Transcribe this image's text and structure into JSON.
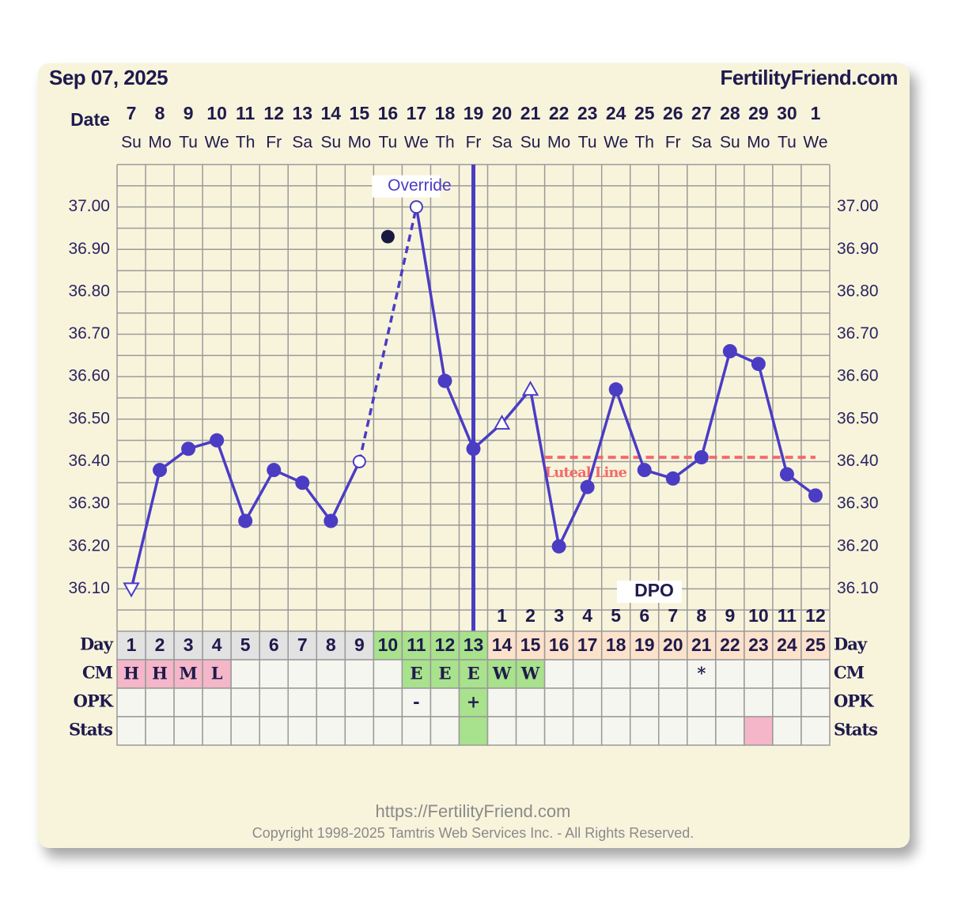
{
  "header": {
    "date": "Sep 07, 2025",
    "site": "FertilityFriend.com"
  },
  "chart_data": {
    "type": "line",
    "date_label": "Date",
    "dates": [
      7,
      8,
      9,
      10,
      11,
      12,
      13,
      14,
      15,
      16,
      17,
      18,
      19,
      20,
      21,
      22,
      23,
      24,
      25,
      26,
      27,
      28,
      29,
      30,
      1
    ],
    "weekdays": [
      "Su",
      "Mo",
      "Tu",
      "We",
      "Th",
      "Fr",
      "Sa",
      "Su",
      "Mo",
      "Tu",
      "We",
      "Th",
      "Fr",
      "Sa",
      "Su",
      "Mo",
      "Tu",
      "We",
      "Th",
      "Fr",
      "Sa",
      "Su",
      "Mo",
      "Tu",
      "We"
    ],
    "ylim": [
      36.0,
      37.1
    ],
    "yticks": [
      {
        "value": 36.1,
        "label": "36.10"
      },
      {
        "value": 36.2,
        "label": "36.20"
      },
      {
        "value": 36.3,
        "label": "36.30"
      },
      {
        "value": 36.4,
        "label": "36.40"
      },
      {
        "value": 36.5,
        "label": "36.50"
      },
      {
        "value": 36.6,
        "label": "36.60"
      },
      {
        "value": 36.7,
        "label": "36.70"
      },
      {
        "value": 36.8,
        "label": "36.80"
      },
      {
        "value": 36.9,
        "label": "36.90"
      },
      {
        "value": 37.0,
        "label": "37.00"
      }
    ],
    "grid": true,
    "color": "#4b3cc4",
    "temperatures": [
      36.1,
      36.38,
      36.43,
      36.45,
      36.26,
      36.38,
      36.35,
      36.26,
      36.4,
      36.93,
      37.0,
      36.59,
      36.43,
      36.49,
      36.57,
      36.2,
      36.34,
      36.57,
      36.38,
      36.36,
      36.41,
      36.66,
      36.63,
      36.37,
      36.32
    ],
    "markers": [
      "triangle-down",
      "filled",
      "filled",
      "filled",
      "filled",
      "filled",
      "filled",
      "filled",
      "open",
      "discarded",
      "override",
      "filled",
      "filled",
      "triangle-up",
      "triangle-up",
      "filled",
      "filled",
      "filled",
      "filled",
      "filled",
      "filled",
      "filled",
      "filled",
      "filled",
      "filled"
    ],
    "override_label": "Override",
    "ovulation_day": 13,
    "coverline": {
      "label": "Luteal Line",
      "value": 36.41,
      "start_day": 16,
      "color": "#f26b6b"
    },
    "dpo_label": "DPO",
    "dpo": [
      null,
      null,
      null,
      null,
      null,
      null,
      null,
      null,
      null,
      null,
      null,
      null,
      null,
      1,
      2,
      3,
      4,
      5,
      6,
      7,
      8,
      9,
      10,
      11,
      12
    ],
    "rows": [
      {
        "label": "Day",
        "cells": [
          1,
          2,
          3,
          4,
          5,
          6,
          7,
          8,
          9,
          10,
          11,
          12,
          13,
          14,
          15,
          16,
          17,
          18,
          19,
          20,
          21,
          22,
          23,
          24,
          25
        ],
        "fills": [
          "#e2e2e2",
          "#e2e2e2",
          "#e2e2e2",
          "#e2e2e2",
          "#e2e2e2",
          "#e2e2e2",
          "#e2e2e2",
          "#e2e2e2",
          "#e2e2e2",
          "#a8e28c",
          "#a8e28c",
          "#a8e28c",
          "#a8e28c",
          "#fde2cb",
          "#fde2cb",
          "#fde2cb",
          "#fde2cb",
          "#fde2cb",
          "#fde2cb",
          "#fde2cb",
          "#fde2cb",
          "#fde2cb",
          "#fde2cb",
          "#fde2cb",
          "#fde2cb"
        ]
      },
      {
        "label": "CM",
        "cells": [
          "H",
          "H",
          "M",
          "L",
          null,
          null,
          null,
          null,
          null,
          null,
          "E",
          "E",
          "E",
          "W",
          "W",
          null,
          null,
          null,
          null,
          null,
          "*",
          null,
          null,
          null,
          null
        ],
        "fills": [
          "#f4b6c8",
          "#f4b6c8",
          "#f4b6c8",
          "#f4b6c8",
          null,
          null,
          null,
          null,
          null,
          null,
          "#a8e28c",
          "#a8e28c",
          "#a8e28c",
          "#a8e28c",
          "#a8e28c",
          null,
          null,
          null,
          null,
          null,
          null,
          null,
          null,
          null,
          null
        ]
      },
      {
        "label": "OPK",
        "cells": [
          null,
          null,
          null,
          null,
          null,
          null,
          null,
          null,
          null,
          null,
          "-",
          null,
          "+",
          null,
          null,
          null,
          null,
          null,
          null,
          null,
          null,
          null,
          null,
          null,
          null
        ],
        "fills": [
          null,
          null,
          null,
          null,
          null,
          null,
          null,
          null,
          null,
          null,
          null,
          null,
          "#a8e28c",
          null,
          null,
          null,
          null,
          null,
          null,
          null,
          null,
          null,
          null,
          null,
          null
        ]
      },
      {
        "label": "Stats",
        "cells": [
          null,
          null,
          null,
          null,
          null,
          null,
          null,
          null,
          null,
          null,
          null,
          null,
          null,
          null,
          null,
          null,
          null,
          null,
          null,
          null,
          null,
          null,
          null,
          null,
          null
        ],
        "fills": [
          null,
          null,
          null,
          null,
          null,
          null,
          null,
          null,
          null,
          null,
          null,
          null,
          "#a8e28c",
          null,
          null,
          null,
          null,
          null,
          null,
          null,
          null,
          null,
          "#f4b6c8",
          null,
          null
        ]
      }
    ]
  },
  "footer": {
    "url": "https://FertilityFriend.com",
    "copyright": "Copyright 1998-2025 Tamtris Web Services Inc. - All Rights Reserved."
  }
}
